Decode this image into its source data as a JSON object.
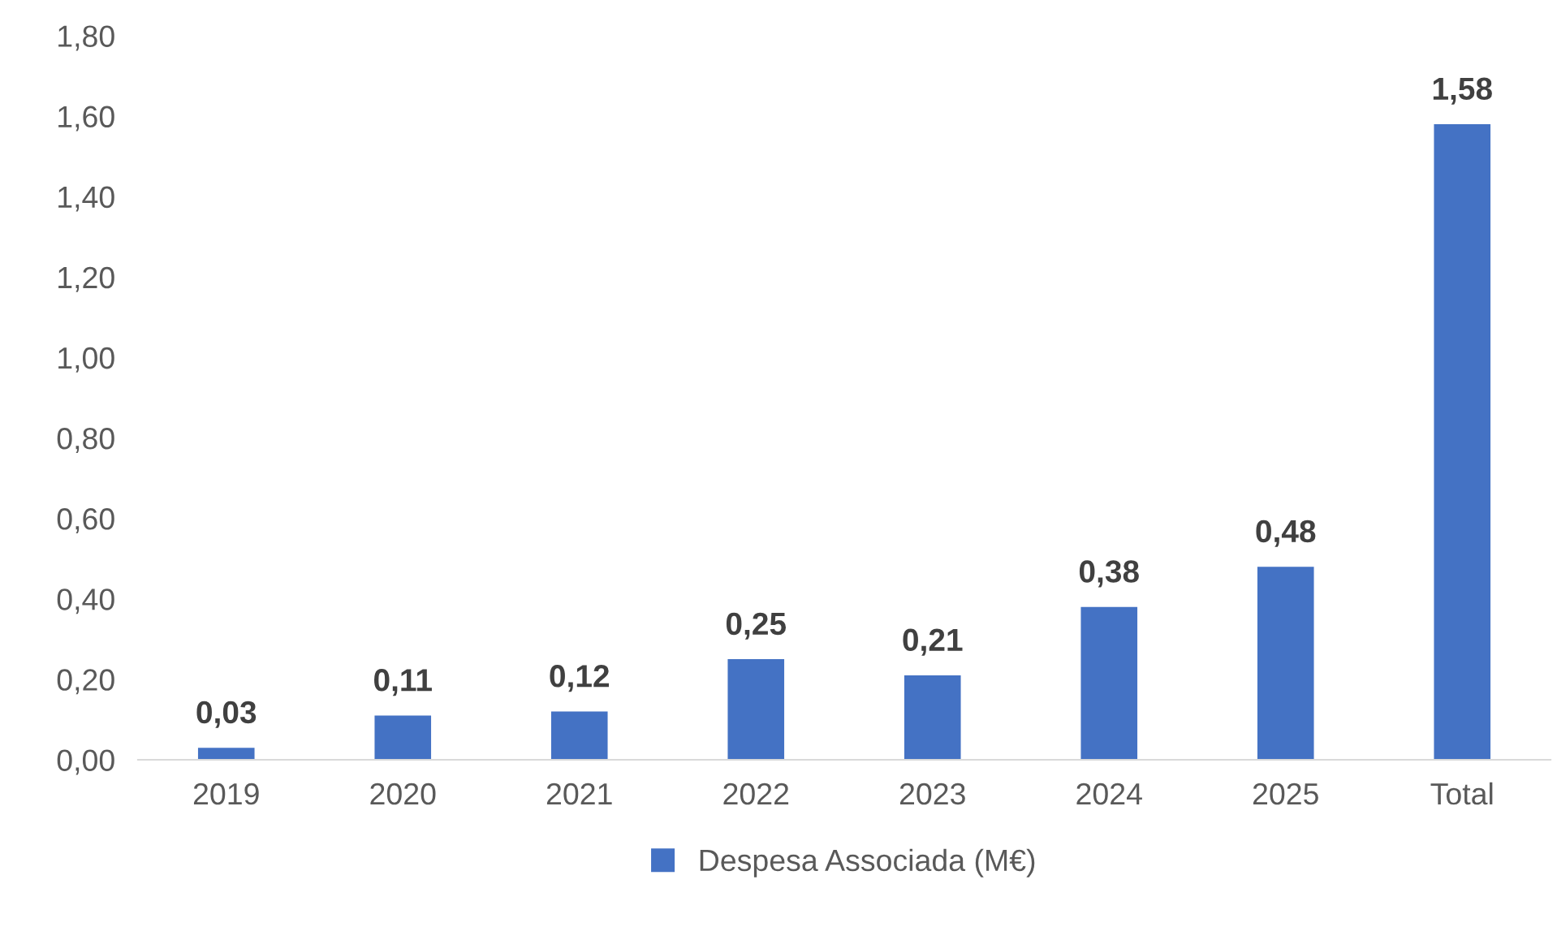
{
  "chart_data": {
    "type": "bar",
    "categories": [
      "2019",
      "2020",
      "2021",
      "2022",
      "2023",
      "2024",
      "2025",
      "Total"
    ],
    "series": [
      {
        "name": "Despesa Associada (M€)",
        "color": "#4472c4",
        "values": [
          0.03,
          0.11,
          0.12,
          0.25,
          0.21,
          0.38,
          0.48,
          1.58
        ]
      }
    ],
    "value_labels": [
      "0,03",
      "0,11",
      "0,12",
      "0,25",
      "0,21",
      "0,38",
      "0,48",
      "1,58"
    ],
    "ylim": [
      0,
      1.8
    ],
    "yticks": [
      {
        "value": 0,
        "label": "0,00"
      },
      {
        "value": 0.2,
        "label": "0,20"
      },
      {
        "value": 0.4,
        "label": "0,40"
      },
      {
        "value": 0.6,
        "label": "0,60"
      },
      {
        "value": 0.8,
        "label": "0,80"
      },
      {
        "value": 1.0,
        "label": "1,00"
      },
      {
        "value": 1.2,
        "label": "1,20"
      },
      {
        "value": 1.4,
        "label": "1,40"
      },
      {
        "value": 1.6,
        "label": "1,60"
      },
      {
        "value": 1.8,
        "label": "1,80"
      }
    ],
    "grid": false,
    "legend": "bottom"
  }
}
